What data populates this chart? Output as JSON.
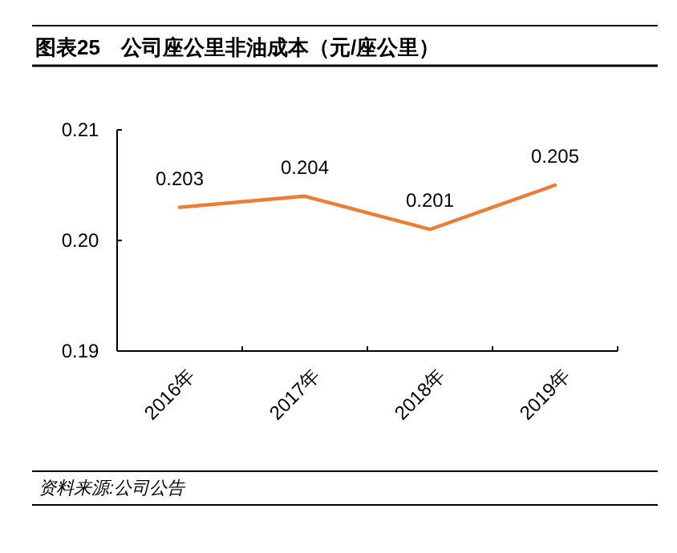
{
  "chart_data": {
    "type": "line",
    "title": "图表25　公司座公里非油成本（元/座公里）",
    "categories": [
      "2016年",
      "2017年",
      "2018年",
      "2019年"
    ],
    "values": [
      0.203,
      0.204,
      0.201,
      0.205
    ],
    "color": "#ed7d31",
    "ylim": [
      0.19,
      0.21
    ],
    "yticks": [
      0.19,
      {
        "value": 0.2,
        "label": "0.20"
      },
      0.21
    ],
    "data_labels": true,
    "annotations": [
      "资料来源:公司公告"
    ]
  }
}
